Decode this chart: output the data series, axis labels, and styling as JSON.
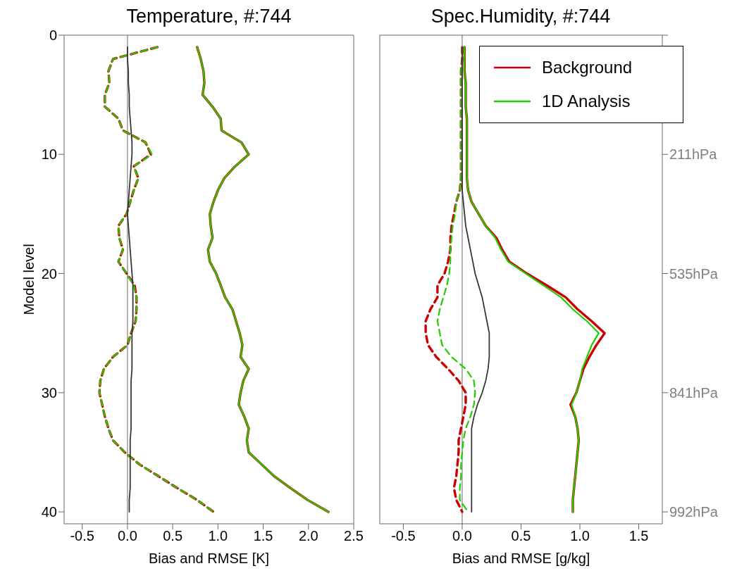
{
  "chart_data": [
    {
      "type": "line",
      "title": "Temperature, #:744",
      "xlabel": "Bias and RMSE [K]",
      "ylabel": "Model level",
      "orientation": "horizontal",
      "marker": "none",
      "legend": false,
      "x": [
        1,
        2,
        3,
        4,
        5,
        6,
        7,
        8,
        9,
        10,
        11,
        12,
        13,
        14,
        15,
        16,
        17,
        18,
        19,
        20,
        21,
        22,
        23,
        24,
        25,
        26,
        27,
        28,
        29,
        30,
        31,
        32,
        33,
        34,
        35,
        36,
        37,
        38,
        39,
        40
      ],
      "xlim": [
        -0.7,
        2.5
      ],
      "xticks": [
        -0.5,
        {
          "value": 0,
          "label": "0.0"
        },
        0.5,
        {
          "value": 1,
          "label": "1.0"
        },
        1.5,
        {
          "value": 2,
          "label": "2.0"
        },
        2.5
      ],
      "ylim": [
        41,
        0
      ],
      "yticks": [
        0,
        10,
        20,
        30,
        40
      ],
      "ref_lines": [
        {
          "axis": "x",
          "value": 0,
          "color": "#999999"
        }
      ],
      "series": [
        {
          "color": "#cc0000",
          "line_style": "solid",
          "values": [
            0.77,
            0.81,
            0.84,
            0.85,
            0.83,
            0.94,
            1.03,
            1.04,
            1.26,
            1.34,
            1.19,
            1.07,
            1.0,
            0.95,
            0.91,
            0.92,
            0.94,
            0.89,
            0.91,
            0.98,
            1.03,
            1.08,
            1.16,
            1.2,
            1.24,
            1.27,
            1.25,
            1.34,
            1.28,
            1.25,
            1.23,
            1.29,
            1.34,
            1.32,
            1.34,
            1.48,
            1.62,
            1.8,
            1.99,
            2.22
          ]
        },
        {
          "color": "#22cc00",
          "line_style": "solid",
          "values": [
            0.77,
            0.81,
            0.84,
            0.85,
            0.83,
            0.94,
            1.03,
            1.04,
            1.26,
            1.34,
            1.19,
            1.07,
            1.0,
            0.95,
            0.91,
            0.92,
            0.94,
            0.89,
            0.91,
            0.98,
            1.03,
            1.08,
            1.16,
            1.2,
            1.24,
            1.27,
            1.25,
            1.34,
            1.28,
            1.25,
            1.23,
            1.29,
            1.34,
            1.32,
            1.34,
            1.48,
            1.62,
            1.8,
            1.99,
            2.22
          ]
        },
        {
          "color": "#cc0000",
          "line_style": "dashed",
          "values": [
            0.33,
            -0.16,
            -0.21,
            -0.2,
            -0.25,
            -0.25,
            -0.1,
            -0.05,
            0.2,
            0.26,
            0.07,
            0.12,
            0.07,
            0.03,
            -0.01,
            -0.1,
            -0.09,
            -0.05,
            -0.1,
            -0.01,
            0.08,
            0.1,
            0.1,
            0.09,
            0.04,
            0.0,
            -0.16,
            -0.26,
            -0.3,
            -0.31,
            -0.28,
            -0.25,
            -0.21,
            -0.16,
            -0.03,
            0.13,
            0.34,
            0.55,
            0.77,
            0.95
          ]
        },
        {
          "color": "#22cc00",
          "line_style": "dashed",
          "values": [
            0.33,
            -0.16,
            -0.21,
            -0.2,
            -0.25,
            -0.25,
            -0.1,
            -0.05,
            0.2,
            0.27,
            0.07,
            0.12,
            0.07,
            0.03,
            -0.01,
            -0.1,
            -0.09,
            -0.05,
            -0.1,
            -0.01,
            0.07,
            0.1,
            0.1,
            0.09,
            0.04,
            0.0,
            -0.16,
            -0.26,
            -0.3,
            -0.31,
            -0.28,
            -0.25,
            -0.21,
            -0.16,
            -0.03,
            0.13,
            0.34,
            0.55,
            0.77,
            0.95
          ]
        },
        {
          "color": "#333333",
          "line_style": "solid",
          "values": [
            0.0,
            0.0,
            0.01,
            0.01,
            0.02,
            0.02,
            0.03,
            0.04,
            0.05,
            0.05,
            0.04,
            0.03,
            0.02,
            0.01,
            0.0,
            0.01,
            0.02,
            0.03,
            0.04,
            0.05,
            0.06,
            0.06,
            0.06,
            0.06,
            0.05,
            0.05,
            0.05,
            0.05,
            0.04,
            0.04,
            0.04,
            0.04,
            0.04,
            0.03,
            0.03,
            0.03,
            0.03,
            0.03,
            0.02,
            0.02
          ]
        }
      ]
    },
    {
      "type": "line",
      "title": "Spec.Humidity, #:744",
      "xlabel": "Bias and RMSE [g/kg]",
      "orientation": "horizontal",
      "marker": "none",
      "legend": "top right",
      "tick_labels": "x",
      "x": [
        1,
        2,
        3,
        4,
        5,
        6,
        7,
        8,
        9,
        10,
        11,
        12,
        13,
        14,
        15,
        16,
        17,
        18,
        19,
        20,
        21,
        22,
        23,
        24,
        25,
        26,
        27,
        28,
        29,
        30,
        31,
        32,
        33,
        34,
        35,
        36,
        37,
        38,
        39,
        40
      ],
      "xlim": [
        -0.7,
        1.7
      ],
      "xticks": [
        -0.5,
        {
          "value": 0,
          "label": "0.0"
        },
        0.5,
        {
          "value": 1,
          "label": "1.0"
        },
        1.5
      ],
      "ylim": [
        41,
        0
      ],
      "yticks": [
        0,
        10,
        20,
        30,
        40
      ],
      "annotations": [
        "211hPa",
        "535hPa",
        "841hPa",
        "992hPa"
      ],
      "ref_lines": [
        {
          "axis": "x",
          "value": 0,
          "color": "#999999"
        }
      ],
      "series": [
        {
          "name": "Background",
          "color": "#cc0000",
          "line_style": "solid",
          "values": [
            0.02,
            0.02,
            0.02,
            0.03,
            0.03,
            0.03,
            0.04,
            0.04,
            0.04,
            0.04,
            0.04,
            0.04,
            0.05,
            0.08,
            0.14,
            0.2,
            0.29,
            0.34,
            0.4,
            0.55,
            0.72,
            0.88,
            0.98,
            1.1,
            1.21,
            1.14,
            1.08,
            1.03,
            1.0,
            0.97,
            0.92,
            0.96,
            0.98,
            0.99,
            0.98,
            0.97,
            0.96,
            0.95,
            0.94,
            0.94
          ]
        },
        {
          "name": "1D Analysis",
          "color": "#22cc00",
          "line_style": "solid",
          "values": [
            0.02,
            0.02,
            0.02,
            0.03,
            0.03,
            0.03,
            0.04,
            0.04,
            0.04,
            0.04,
            0.04,
            0.04,
            0.05,
            0.08,
            0.14,
            0.2,
            0.28,
            0.33,
            0.39,
            0.54,
            0.69,
            0.84,
            0.94,
            1.06,
            1.16,
            1.1,
            1.06,
            1.02,
            1.0,
            0.97,
            0.93,
            0.96,
            0.98,
            0.99,
            0.98,
            0.97,
            0.96,
            0.95,
            0.94,
            0.94
          ]
        },
        {
          "color": "#cc0000",
          "line_style": "dashed",
          "values": [
            0.0,
            0.0,
            -0.01,
            -0.01,
            -0.01,
            -0.01,
            -0.01,
            -0.01,
            -0.01,
            -0.01,
            -0.01,
            -0.01,
            -0.02,
            -0.05,
            -0.07,
            -0.09,
            -0.1,
            -0.1,
            -0.12,
            -0.15,
            -0.21,
            -0.21,
            -0.27,
            -0.31,
            -0.31,
            -0.29,
            -0.22,
            -0.12,
            -0.03,
            0.03,
            0.03,
            0.01,
            -0.01,
            -0.03,
            -0.03,
            -0.04,
            -0.05,
            -0.07,
            -0.05,
            0.0
          ]
        },
        {
          "color": "#22cc00",
          "line_style": "dashed",
          "values": [
            0.0,
            0.0,
            -0.01,
            -0.01,
            -0.01,
            -0.01,
            -0.01,
            -0.01,
            -0.01,
            -0.01,
            -0.01,
            -0.01,
            -0.02,
            -0.05,
            -0.06,
            -0.08,
            -0.09,
            -0.1,
            -0.1,
            -0.11,
            -0.13,
            -0.16,
            -0.19,
            -0.21,
            -0.19,
            -0.17,
            -0.09,
            0.03,
            0.1,
            0.11,
            0.1,
            0.07,
            0.03,
            0.01,
            0.0,
            -0.01,
            -0.01,
            -0.02,
            -0.02,
            0.05
          ]
        },
        {
          "color": "#333333",
          "line_style": "solid",
          "values": [
            0.0,
            0.0,
            0.0,
            0.0,
            0.0,
            0.0,
            0.0,
            0.0,
            0.0,
            0.0,
            0.0,
            0.0,
            0.0,
            0.01,
            0.02,
            0.03,
            0.05,
            0.07,
            0.09,
            0.11,
            0.14,
            0.17,
            0.19,
            0.21,
            0.23,
            0.23,
            0.23,
            0.22,
            0.2,
            0.17,
            0.13,
            0.1,
            0.08,
            0.08,
            0.08,
            0.08,
            0.08,
            0.08,
            0.08,
            0.08
          ]
        }
      ]
    }
  ]
}
